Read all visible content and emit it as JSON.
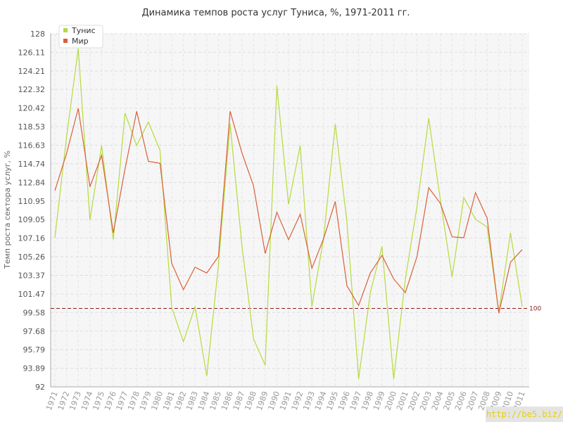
{
  "chart_data": {
    "type": "line",
    "title": "Динамика темпов роста услуг Туниса, %, 1971-2011 гг.",
    "ylabel": "Темп роста сектора услуг, %",
    "xlabel": "",
    "ylim": [
      92,
      128
    ],
    "y_ticks": [
      "92",
      "93.89",
      "95.79",
      "97.68",
      "99.58",
      "101.47",
      "103.37",
      "105.26",
      "107.16",
      "109.05",
      "110.95",
      "112.84",
      "114.74",
      "116.63",
      "118.53",
      "120.42",
      "122.32",
      "124.21",
      "126.11",
      "128"
    ],
    "categories": [
      "1971",
      "1972",
      "1973",
      "1974",
      "1975",
      "1976",
      "1977",
      "1978",
      "1979",
      "1980",
      "1981",
      "1982",
      "1983",
      "1984",
      "1985",
      "1986",
      "1987",
      "1988",
      "1989",
      "1990",
      "1991",
      "1992",
      "1993",
      "1994",
      "1995",
      "1996",
      "1997",
      "1998",
      "1999",
      "2000",
      "2001",
      "2002",
      "2003",
      "2004",
      "2005",
      "2006",
      "2007",
      "2008",
      "2009",
      "2010",
      "2011"
    ],
    "series": [
      {
        "name": "Тунис",
        "color": "#b5db3d",
        "values": [
          107.2,
          117.5,
          126.5,
          109.0,
          116.6,
          107.0,
          119.9,
          116.6,
          119.0,
          116.1,
          100.1,
          96.6,
          100.2,
          93.1,
          104.4,
          118.8,
          106.5,
          96.9,
          94.2,
          122.7,
          110.6,
          116.6,
          100.2,
          107.1,
          118.8,
          108.8,
          92.8,
          101.6,
          106.3,
          92.8,
          103.0,
          110.4,
          119.4,
          111.0,
          103.2,
          111.3,
          109.1,
          108.3,
          99.6,
          107.7,
          100.2
        ]
      },
      {
        "name": "Мир",
        "color": "#d9603b",
        "values": [
          112.0,
          115.8,
          120.4,
          112.4,
          115.6,
          107.7,
          114.2,
          120.1,
          115.0,
          114.8,
          104.6,
          101.9,
          104.2,
          103.6,
          105.3,
          120.1,
          115.9,
          112.5,
          105.6,
          109.8,
          107.0,
          109.6,
          104.1,
          107.1,
          110.9,
          102.3,
          100.3,
          103.6,
          105.4,
          103.0,
          101.6,
          105.3,
          112.3,
          110.7,
          107.3,
          107.2,
          111.8,
          109.2,
          99.5,
          104.7,
          106.0
        ]
      }
    ],
    "reference_line": {
      "value": 100,
      "label": "100",
      "color": "#8b1a1a"
    },
    "grid": true,
    "legend_placement": "top-left"
  },
  "watermark": "http://be5.biz/"
}
